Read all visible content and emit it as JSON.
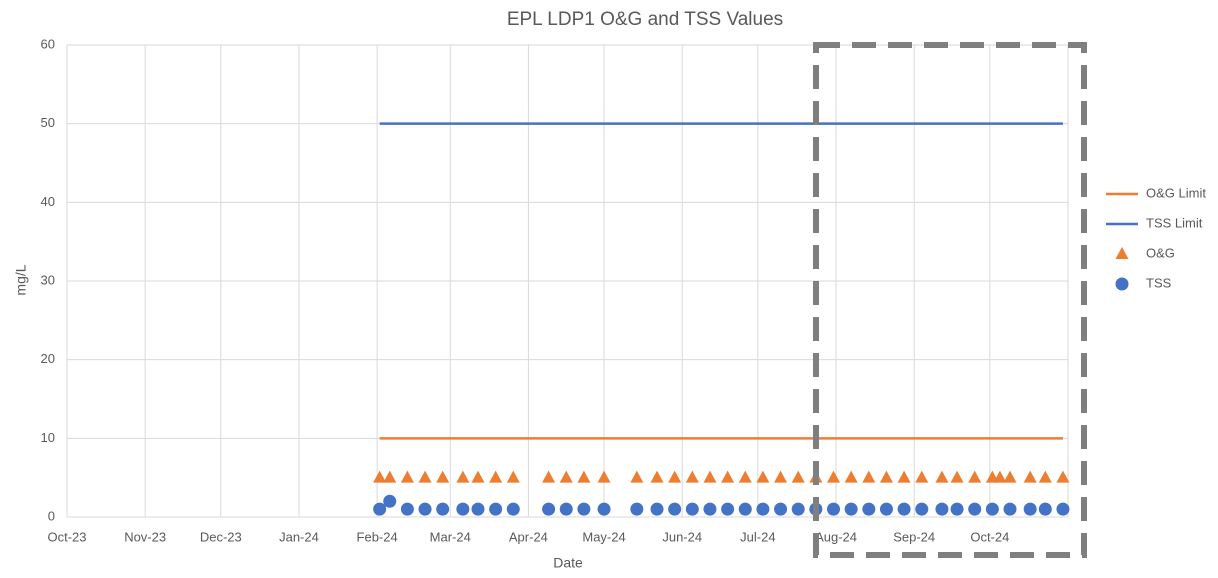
{
  "chart_data": {
    "type": "scatter",
    "title": "EPL LDP1 O&G and TSS Values",
    "x_label": "Date",
    "y_label": "mg/L",
    "xlim": [
      45200,
      45597
    ],
    "xticks": [
      {
        "value": 45200,
        "label": "Oct-23"
      },
      {
        "value": 45231,
        "label": "Nov-23"
      },
      {
        "value": 45261,
        "label": "Dec-23"
      },
      {
        "value": 45292,
        "label": "Jan-24"
      },
      {
        "value": 45323,
        "label": "Feb-24"
      },
      {
        "value": 45352,
        "label": "Mar-24"
      },
      {
        "value": 45383,
        "label": "Apr-24"
      },
      {
        "value": 45413,
        "label": "May-24"
      },
      {
        "value": 45444,
        "label": "Jun-24"
      },
      {
        "value": 45474,
        "label": "Jul-24"
      },
      {
        "value": 45505,
        "label": "Aug-24"
      },
      {
        "value": 45536,
        "label": "Sep-24"
      },
      {
        "value": 45566,
        "label": "Oct-24"
      }
    ],
    "ylim": [
      0,
      60
    ],
    "yticks": [
      0,
      10,
      20,
      30,
      40,
      50,
      60
    ],
    "grid": true,
    "legend": "right",
    "series": [
      {
        "name": "O&G Limit",
        "color": "#ed7d31",
        "mode": "line",
        "x": [
          45324,
          45595
        ],
        "values": [
          10,
          10
        ]
      },
      {
        "name": "TSS Limit",
        "color": "#4472c4",
        "mode": "line",
        "x": [
          45324,
          45595
        ],
        "values": [
          50,
          50
        ]
      },
      {
        "name": "O&G",
        "color": "#ed7d31",
        "mode": "markers",
        "marker": "triangle",
        "x": [
          45324,
          45328,
          45335,
          45342,
          45349,
          45357,
          45363,
          45370,
          45377,
          45391,
          45398,
          45405,
          45413,
          45426,
          45434,
          45441,
          45448,
          45455,
          45462,
          45469,
          45476,
          45483,
          45490,
          45497,
          45504,
          45511,
          45518,
          45525,
          45532,
          45539,
          45547,
          45553,
          45560,
          45567,
          45570,
          45574,
          45582,
          45588,
          45595
        ],
        "values": [
          5,
          5,
          5,
          5,
          5,
          5,
          5,
          5,
          5,
          5,
          5,
          5,
          5,
          5,
          5,
          5,
          5,
          5,
          5,
          5,
          5,
          5,
          5,
          5,
          5,
          5,
          5,
          5,
          5,
          5,
          5,
          5,
          5,
          5,
          5,
          5,
          5,
          5,
          5
        ]
      },
      {
        "name": "TSS",
        "color": "#4472c4",
        "mode": "markers",
        "marker": "circle",
        "x": [
          45324,
          45328,
          45335,
          45342,
          45349,
          45357,
          45363,
          45370,
          45377,
          45391,
          45398,
          45405,
          45413,
          45426,
          45434,
          45441,
          45448,
          45455,
          45462,
          45469,
          45476,
          45483,
          45490,
          45497,
          45504,
          45511,
          45518,
          45525,
          45532,
          45539,
          45547,
          45553,
          45560,
          45567,
          45574,
          45582,
          45588,
          45595
        ],
        "values": [
          1,
          2,
          1,
          1,
          1,
          1,
          1,
          1,
          1,
          1,
          1,
          1,
          1,
          1,
          1,
          1,
          1,
          1,
          1,
          1,
          1,
          1,
          1,
          1,
          1,
          1,
          1,
          1,
          1,
          1,
          1,
          1,
          1,
          1,
          1,
          1,
          1,
          1
        ]
      }
    ]
  }
}
